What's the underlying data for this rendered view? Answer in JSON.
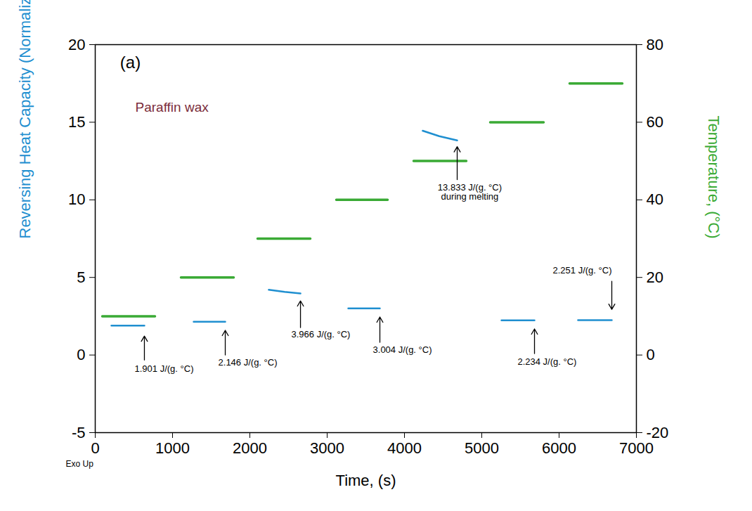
{
  "chart_data": {
    "type": "line",
    "title": "(a)",
    "subtitle": "Paraffin wax",
    "exo_label": "Exo Up",
    "x_label": "Time, (s)",
    "y_label": "Reversing Heat Capacity (Normalized) (J/(g. °C))",
    "y2_label": "Temperature, (°C)",
    "xlim": [
      0,
      7000
    ],
    "xticks": [
      0,
      1000,
      2000,
      3000,
      4000,
      5000,
      6000,
      7000
    ],
    "ylim": [
      -5,
      20
    ],
    "yticks": [
      -5,
      0,
      5,
      10,
      15,
      20
    ],
    "y2lim": [
      -20,
      80
    ],
    "y2ticks": [
      -20,
      0,
      20,
      40,
      60,
      80
    ],
    "series": [
      {
        "color": "#1f8fd0",
        "axis": "y",
        "x": [
          209,
          636,
          null,
          1273,
          1682,
          null,
          2245,
          2450,
          2655,
          null,
          3273,
          3682,
          null,
          4236,
          4450,
          4682,
          null,
          5255,
          5682,
          null,
          6245,
          6682
        ],
        "values": [
          1.901,
          1.901,
          null,
          2.146,
          2.146,
          null,
          4.2,
          4.07,
          3.966,
          null,
          3.004,
          3.004,
          null,
          14.45,
          14.1,
          13.833,
          null,
          2.234,
          2.234,
          null,
          2.251,
          2.251
        ]
      },
      {
        "color": "#3aaa35",
        "axis": "y2",
        "x": [
          91,
          773,
          null,
          1109,
          1791,
          null,
          2100,
          2782,
          null,
          3118,
          3782,
          null,
          4118,
          4800,
          null,
          5109,
          5800,
          null,
          6136,
          6818
        ],
        "values": [
          10,
          10,
          null,
          20,
          20,
          null,
          30,
          30,
          null,
          40,
          40,
          null,
          50,
          50,
          null,
          60,
          60,
          null,
          70,
          70
        ]
      }
    ],
    "annotations": [
      {
        "text": "1.901 J/(g. °C)",
        "x": 636,
        "y": 1.22,
        "xtail": 636,
        "ytail": -0.32,
        "xtext": 891,
        "ytext": -0.68
      },
      {
        "text": "2.146 J/(g. °C)",
        "x": 1682,
        "y": 1.59,
        "xtail": 1682,
        "ytail": 0,
        "xtext": 1973,
        "ytext": -0.27
      },
      {
        "text": "3.966 J/(g. °C)",
        "x": 2655,
        "y": 3.49,
        "xtail": 2655,
        "ytail": 1.77,
        "xtext": 2918,
        "ytext": 1.54
      },
      {
        "text": "3.004 J/(g. °C)",
        "x": 3682,
        "y": 2.45,
        "xtail": 3682,
        "ytail": 0.82,
        "xtext": 3973,
        "ytext": 0.54
      },
      {
        "text": "13.833 J/(g. °C)\nduring melting",
        "x": 4682,
        "y": 13.43,
        "xtail": 4682,
        "ytail": 11.3,
        "xtext": 4845,
        "ytext": 11.0
      },
      {
        "text": "2.234 J/(g. °C)",
        "x": 5682,
        "y": 1.68,
        "xtail": 5682,
        "ytail": 0.09,
        "xtext": 5845,
        "ytext": -0.23
      },
      {
        "text": "2.251 J/(g. °C)",
        "x": 6682,
        "y": 2.94,
        "xtail": 6682,
        "ytail": 4.75,
        "xtext": 6300,
        "ytext": 5.66
      }
    ]
  }
}
